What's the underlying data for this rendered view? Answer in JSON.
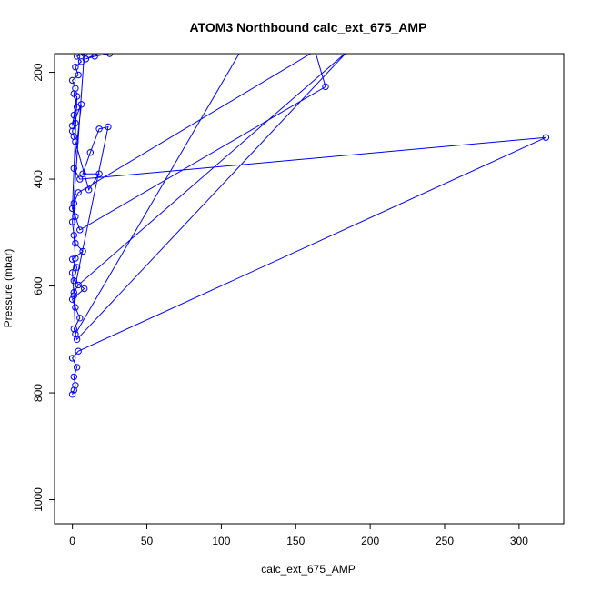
{
  "chart_data": {
    "type": "line",
    "title": "ATOM3 Northbound calc_ext_675_AMP",
    "xlabel": "calc_ext_675_AMP",
    "ylabel": "Pressure (mbar)",
    "xlim": [
      -12,
      330
    ],
    "ylim": [
      1045,
      165
    ],
    "y_inverted": true,
    "x_ticks": [
      0,
      50,
      100,
      150,
      200,
      250,
      300
    ],
    "y_ticks": [
      200,
      400,
      600,
      800,
      1000
    ],
    "grid": false,
    "legend": "none",
    "series": [
      {
        "color": "#0000ff",
        "points": [
          [
            0,
            803
          ],
          [
            1,
            795
          ],
          [
            2,
            786
          ],
          [
            1,
            770
          ],
          [
            3,
            752
          ],
          [
            0,
            735
          ],
          [
            4,
            722
          ],
          [
            318,
            322
          ],
          [
            5,
            400
          ],
          [
            1,
            380
          ],
          [
            6,
            260
          ],
          [
            0,
            300
          ],
          [
            3,
            245
          ],
          [
            0,
            455
          ],
          [
            2,
            470
          ],
          [
            5,
            495
          ],
          [
            170,
            227
          ],
          [
            163,
            160
          ],
          [
            4,
            425
          ],
          [
            1,
            445
          ],
          [
            2,
            520
          ],
          [
            7,
            535
          ],
          [
            0,
            550
          ],
          [
            3,
            565
          ],
          [
            1,
            590
          ],
          [
            8,
            605
          ],
          [
            0,
            625
          ],
          [
            2,
            640
          ],
          [
            5,
            660
          ],
          [
            1,
            680
          ],
          [
            3,
            700
          ],
          [
            185,
            160
          ],
          [
            4,
            598
          ],
          [
            1,
            612
          ],
          [
            24,
            302
          ],
          [
            18,
            306
          ],
          [
            12,
            350
          ],
          [
            7,
            390
          ],
          [
            18,
            390
          ],
          [
            11,
            420
          ],
          [
            2,
            330
          ],
          [
            1,
            320
          ],
          [
            0,
            310
          ],
          [
            2,
            295
          ],
          [
            1,
            280
          ],
          [
            3,
            265
          ],
          [
            1,
            240
          ],
          [
            2,
            230
          ],
          [
            0,
            215
          ],
          [
            4,
            205
          ],
          [
            2,
            190
          ],
          [
            6,
            180
          ],
          [
            3,
            170
          ],
          [
            8,
            165
          ],
          [
            0,
            480
          ],
          [
            1,
            505
          ],
          [
            2,
            548
          ],
          [
            0,
            575
          ],
          [
            1,
            618
          ],
          [
            2,
            690
          ],
          [
            113,
            160
          ],
          [
            35,
            160
          ],
          [
            25,
            165
          ],
          [
            15,
            170
          ],
          [
            9,
            175
          ],
          [
            20,
            160
          ],
          [
            5,
            160
          ],
          [
            0,
            160
          ]
        ]
      }
    ]
  }
}
